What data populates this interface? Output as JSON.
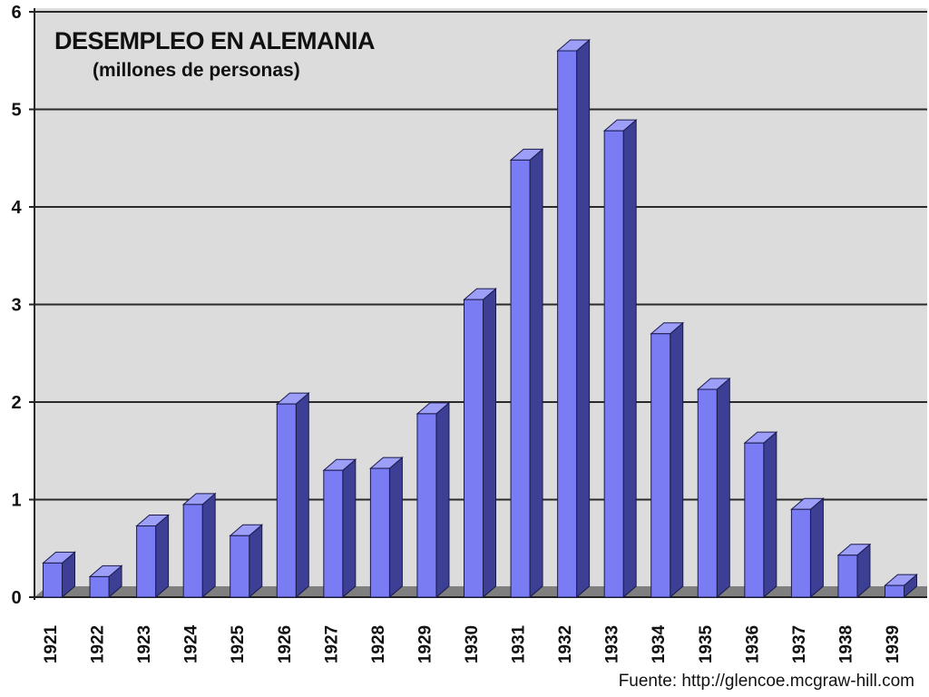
{
  "chart_data": {
    "type": "bar",
    "title": "DESEMPLEO EN ALEMANIA",
    "subtitle": "(millones de personas)",
    "source": "Fuente: http://glencoe.mcgraw-hill.com",
    "xlabel": "",
    "ylabel": "",
    "ylim": [
      0,
      6
    ],
    "yticks": [
      "0",
      "1",
      "2",
      "3",
      "4",
      "5",
      "6"
    ],
    "grid": true,
    "legend": "none",
    "categories": [
      "1921",
      "1922",
      "1923",
      "1924",
      "1925",
      "1926",
      "1927",
      "1928",
      "1929",
      "1930",
      "1931",
      "1932",
      "1933",
      "1934",
      "1935",
      "1936",
      "1937",
      "1938",
      "1939"
    ],
    "values": [
      0.35,
      0.21,
      0.73,
      0.95,
      0.63,
      1.98,
      1.3,
      1.32,
      1.88,
      3.05,
      4.48,
      5.6,
      4.78,
      2.7,
      2.13,
      1.58,
      0.9,
      0.43,
      0.12
    ],
    "colors": {
      "bar_front": "#7a7cf4",
      "bar_top": "#9c9ef8",
      "bar_side": "#3d3f94",
      "bar_edge": "#1a1a4a",
      "plot_background": "#dcdcdc",
      "gridline": "#2a2a2a",
      "floor": "#7f7f7f"
    }
  }
}
